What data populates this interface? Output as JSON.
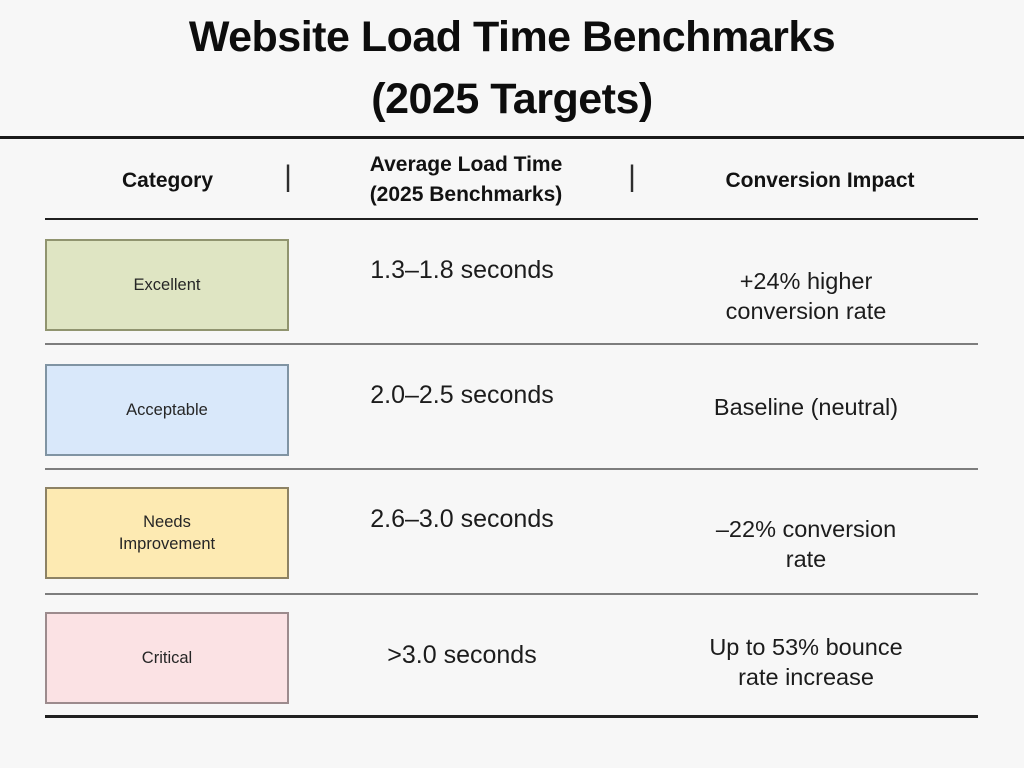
{
  "title_lines": [
    "Website Load Time Benchmarks",
    "(2025 Targets)"
  ],
  "table": {
    "headers": {
      "category": "Category",
      "load_time_lines": [
        "Average Load Time",
        "(2025 Benchmarks)"
      ],
      "impact": "Conversion Impact",
      "separator": "|"
    },
    "rows": [
      {
        "category_lines": [
          "Excellent"
        ],
        "load_time": "1.3–1.8 seconds",
        "impact_lines": [
          "+24% higher",
          "conversion rate"
        ],
        "fill": "#dfe5c3",
        "border": "#90946f"
      },
      {
        "category_lines": [
          "Acceptable"
        ],
        "load_time": "2.0–2.5 seconds",
        "impact_lines": [
          "Baseline (neutral)"
        ],
        "fill": "#d9e8fa",
        "border": "#8094a3"
      },
      {
        "category_lines": [
          "Needs",
          "Improvement"
        ],
        "load_time": "2.6–3.0 seconds",
        "impact_lines": [
          "–22% conversion",
          "rate"
        ],
        "fill": "#fdeab2",
        "border": "#8d8264"
      },
      {
        "category_lines": [
          "Critical"
        ],
        "load_time": ">3.0 seconds",
        "impact_lines": [
          "Up to 53% bounce",
          "rate increase"
        ],
        "fill": "#fbe2e4",
        "border": "#9c8b8d"
      }
    ]
  },
  "colors": {
    "background": "#f7f7f7",
    "title_text": "#0d0d0d",
    "heavy_rule": "#1a1a1a",
    "row_divider": "#7d7d7d",
    "excellent_fill": "#dfe5c3",
    "acceptable_fill": "#d9e8fa",
    "needs_improvement_fill": "#fdeab2",
    "critical_fill": "#fbe2e4"
  },
  "chart_data": {
    "type": "table",
    "title": "Website Load Time Benchmarks (2025 Targets)",
    "columns": [
      "Category",
      "Average Load Time (2025 Benchmarks)",
      "Conversion Impact"
    ],
    "rows": [
      [
        "Excellent",
        "1.3–1.8 seconds",
        "+24% higher conversion rate"
      ],
      [
        "Acceptable",
        "2.0–2.5 seconds",
        "Baseline (neutral)"
      ],
      [
        "Needs Improvement",
        "2.6–3.0 seconds",
        "–22% conversion rate"
      ],
      [
        "Critical",
        ">3.0 seconds",
        "Up to 53% bounce rate increase"
      ]
    ]
  }
}
